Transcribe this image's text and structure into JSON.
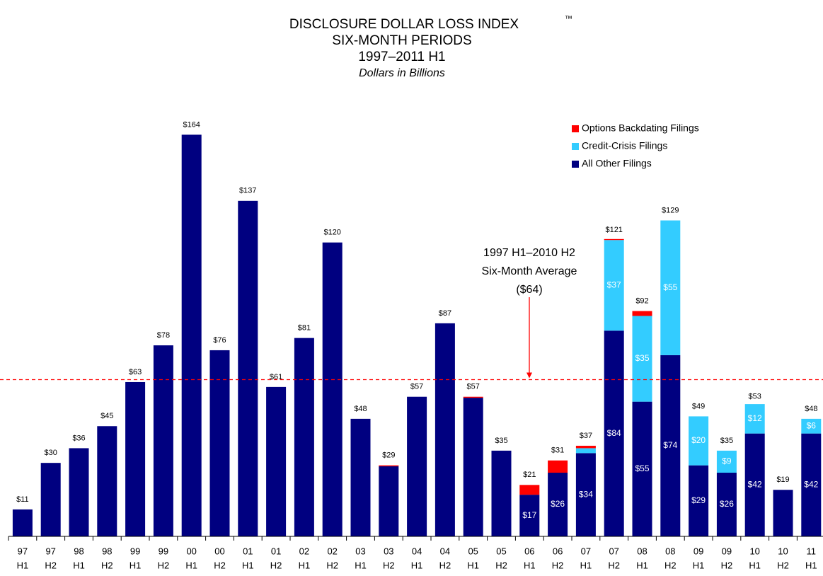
{
  "chart_data": {
    "type": "stacked_bar",
    "title": "DISCLOSURE DOLLAR LOSS INDEX",
    "title_mark": "™",
    "subtitle": [
      "SIX-MONTH PERIODS",
      "1997–2011 H1"
    ],
    "note": "Dollars in Billions",
    "categories": [
      [
        "97",
        "H1"
      ],
      [
        "97",
        "H2"
      ],
      [
        "98",
        "H1"
      ],
      [
        "98",
        "H2"
      ],
      [
        "99",
        "H1"
      ],
      [
        "99",
        "H2"
      ],
      [
        "00",
        "H1"
      ],
      [
        "00",
        "H2"
      ],
      [
        "01",
        "H1"
      ],
      [
        "01",
        "H2"
      ],
      [
        "02",
        "H1"
      ],
      [
        "02",
        "H2"
      ],
      [
        "03",
        "H1"
      ],
      [
        "03",
        "H2"
      ],
      [
        "04",
        "H1"
      ],
      [
        "04",
        "H2"
      ],
      [
        "05",
        "H1"
      ],
      [
        "05",
        "H2"
      ],
      [
        "06",
        "H1"
      ],
      [
        "06",
        "H2"
      ],
      [
        "07",
        "H1"
      ],
      [
        "07",
        "H2"
      ],
      [
        "08",
        "H1"
      ],
      [
        "08",
        "H2"
      ],
      [
        "09",
        "H1"
      ],
      [
        "09",
        "H2"
      ],
      [
        "10",
        "H1"
      ],
      [
        "10",
        "H2"
      ],
      [
        "11",
        "H1"
      ]
    ],
    "series": [
      {
        "name": "All Other Filings",
        "color": "#000080",
        "values": [
          11,
          30,
          36,
          45,
          63,
          78,
          164,
          76,
          137,
          61,
          81,
          120,
          48,
          28.6,
          57,
          87,
          56.6,
          35,
          17,
          26,
          34,
          84,
          55,
          74,
          29,
          26,
          42,
          19,
          42
        ],
        "value_labels": [
          null,
          null,
          null,
          null,
          null,
          null,
          null,
          null,
          null,
          null,
          null,
          null,
          null,
          null,
          null,
          null,
          null,
          null,
          "$17",
          "$26",
          "$34",
          "$84",
          "$55",
          "$74",
          "$29",
          "$26",
          "$42",
          null,
          "$42"
        ]
      },
      {
        "name": "Credit-Crisis Filings",
        "color": "#33ccff",
        "values": [
          null,
          null,
          null,
          null,
          null,
          null,
          null,
          null,
          null,
          null,
          null,
          null,
          null,
          null,
          null,
          null,
          null,
          null,
          null,
          null,
          2,
          37,
          35,
          55,
          20,
          9,
          12,
          null,
          6
        ],
        "value_labels": [
          null,
          null,
          null,
          null,
          null,
          null,
          null,
          null,
          null,
          null,
          null,
          null,
          null,
          null,
          null,
          null,
          null,
          null,
          null,
          null,
          null,
          "$37",
          "$35",
          "$55",
          "$20",
          "$9",
          "$12",
          null,
          "$6"
        ]
      },
      {
        "name": "Options Backdating Filings",
        "color": "#ff0000",
        "values": [
          null,
          null,
          null,
          null,
          null,
          null,
          null,
          null,
          null,
          null,
          null,
          null,
          null,
          0.4,
          null,
          null,
          0.4,
          null,
          4,
          5,
          1,
          0.4,
          2,
          null,
          null,
          null,
          null,
          null,
          null
        ]
      }
    ],
    "totals": [
      11,
      30,
      36,
      45,
      63,
      78,
      164,
      76,
      137,
      61,
      81,
      120,
      48,
      29,
      57,
      87,
      57,
      35,
      21,
      31,
      37,
      121,
      92,
      129,
      49,
      35,
      53,
      19,
      48
    ],
    "total_labels": [
      "$11",
      "$30",
      "$36",
      "$45",
      "$63",
      "$78",
      "$164",
      "$76",
      "$137",
      "$61",
      "$81",
      "$120",
      "$48",
      "$29",
      "$57",
      "$87",
      "$57",
      "$35",
      "$21",
      "$31",
      "$37",
      "$121",
      "$92",
      "$129",
      "$49",
      "$35",
      "$53",
      "$19",
      "$48"
    ],
    "reference_line": {
      "value": 64,
      "color": "#ff0000",
      "label": [
        "1997 H1–2010 H2",
        "Six-Month Average",
        "($64)"
      ]
    },
    "ylim": [
      0,
      180
    ],
    "legend": "upper right"
  }
}
